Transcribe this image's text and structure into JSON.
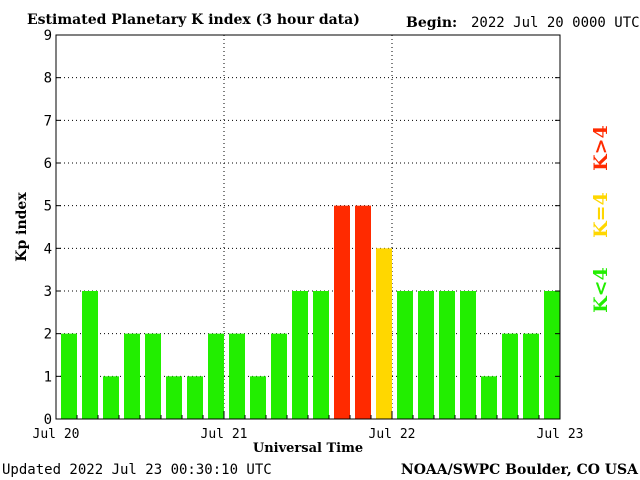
{
  "chart_data": {
    "type": "bar",
    "title": "Estimated Planetary K index (3 hour data)",
    "begin_label": "Begin:",
    "begin_value": "2022 Jul 20 0000 UTC",
    "ylabel": "Kp index",
    "xlabel": "Universal Time",
    "ylim": [
      0,
      9
    ],
    "yticks": [
      "0",
      "1",
      "2",
      "3",
      "4",
      "5",
      "6",
      "7",
      "8",
      "9"
    ],
    "x_tick_labels": [
      "Jul 20",
      "Jul 21",
      "Jul 22",
      "Jul 23"
    ],
    "grid": true,
    "values": [
      2,
      3,
      1,
      2,
      2,
      1,
      1,
      2,
      2,
      1,
      2,
      3,
      3,
      5,
      5,
      4,
      3,
      3,
      3,
      3,
      1,
      2,
      2,
      3
    ],
    "legend": [
      {
        "label": "K<4",
        "color": "#22ee00"
      },
      {
        "label": "K=4",
        "color": "#ffd700"
      },
      {
        "label": "K>4",
        "color": "#ff2a00"
      }
    ],
    "colors": {
      "low": "#22ee00",
      "equal": "#ffd700",
      "high": "#ff2a00"
    }
  },
  "footer": {
    "updated": "Updated 2022 Jul 23 00:30:10 UTC",
    "source": "NOAA/SWPC Boulder, CO USA"
  }
}
